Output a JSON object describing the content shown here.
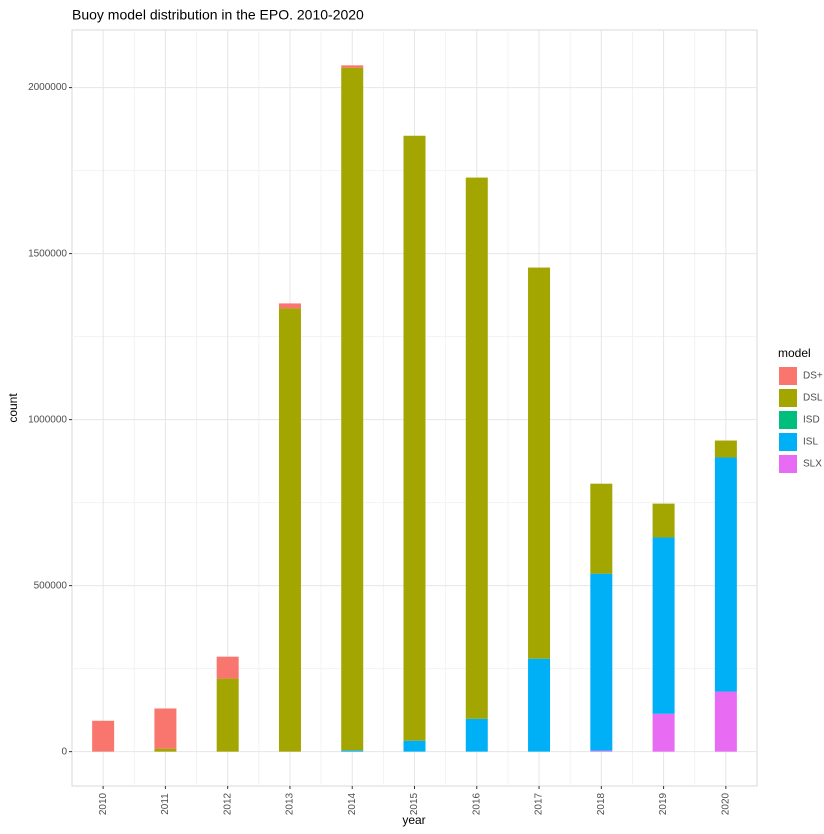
{
  "chart_data": {
    "type": "stacked_bar",
    "title": "Buoy model distribution in the EPO. 2010-2020",
    "x_label": "year",
    "y_label": "count",
    "legend_title": "model",
    "categories": [
      "2010",
      "2011",
      "2012",
      "2013",
      "2014",
      "2015",
      "2016",
      "2017",
      "2018",
      "2019",
      "2020"
    ],
    "series": [
      {
        "name": "SLX",
        "color": "#E76BF3",
        "values": [
          0,
          0,
          0,
          0,
          0,
          0,
          0,
          0,
          3000,
          114000,
          181000
        ]
      },
      {
        "name": "ISL",
        "color": "#00B0F6",
        "values": [
          0,
          0,
          0,
          0,
          4000,
          33000,
          99000,
          280000,
          533000,
          531000,
          705000
        ]
      },
      {
        "name": "ISD",
        "color": "#00BF7D",
        "values": [
          0,
          0,
          0,
          0,
          0,
          0,
          0,
          0,
          0,
          0,
          0
        ]
      },
      {
        "name": "DSL",
        "color": "#A3A500",
        "values": [
          0,
          9000,
          220000,
          1335000,
          2056000,
          1822000,
          1630000,
          1178000,
          271000,
          102000,
          51000
        ]
      },
      {
        "name": "DS+",
        "color": "#F8766D",
        "values": [
          93000,
          121000,
          66000,
          15000,
          7000,
          0,
          0,
          0,
          0,
          0,
          0
        ]
      }
    ],
    "legend_order": [
      4,
      3,
      2,
      1,
      0
    ],
    "ylim": [
      -103500,
      2173500
    ],
    "yticks": [
      0,
      500000,
      1000000,
      1500000,
      2000000
    ],
    "grid": true
  }
}
